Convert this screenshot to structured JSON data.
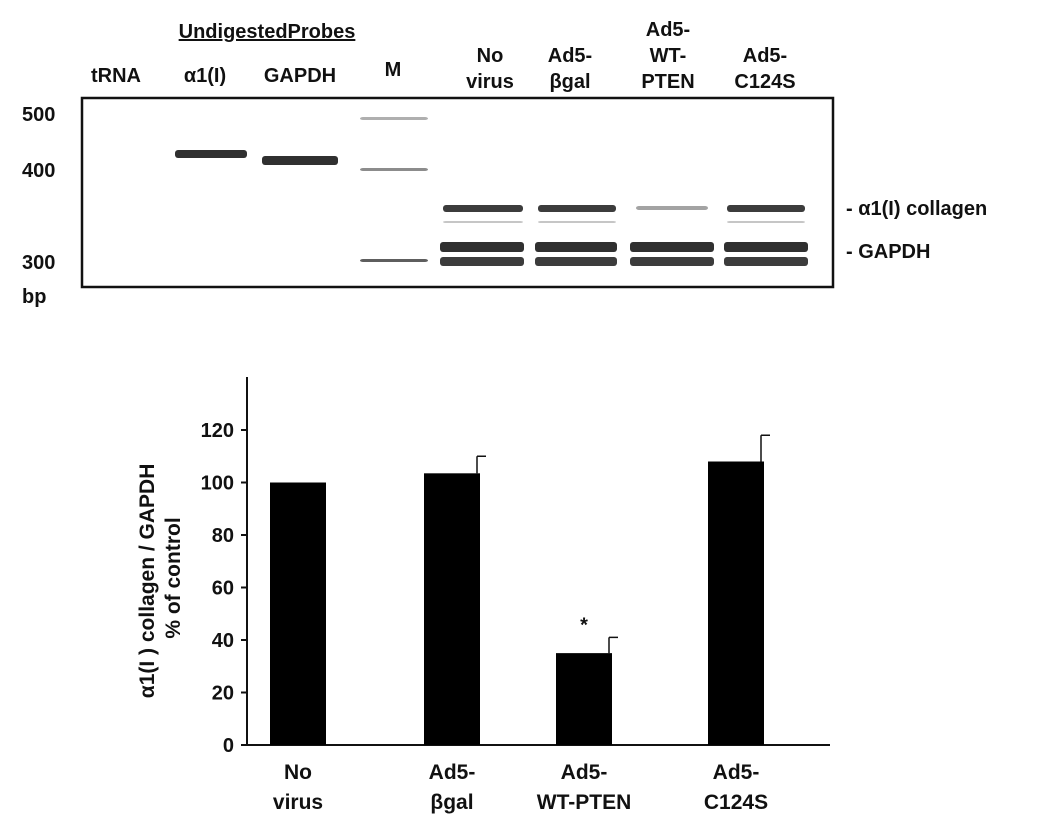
{
  "gel": {
    "header_group_label": "UndigestedProbes",
    "lanes": [
      {
        "lines": [
          "tRNA"
        ]
      },
      {
        "lines": [
          "α1(I)"
        ]
      },
      {
        "lines": [
          "GAPDH"
        ]
      },
      {
        "lines": [
          "M"
        ]
      },
      {
        "lines": [
          "No",
          "virus"
        ]
      },
      {
        "lines": [
          "Ad5-",
          "βgal"
        ]
      },
      {
        "lines": [
          "Ad5-",
          "WT-",
          "PTEN"
        ]
      },
      {
        "lines": [
          "Ad5-",
          "C124S"
        ]
      }
    ],
    "size_markers": [
      "500",
      "400",
      "300"
    ],
    "size_unit": "bp",
    "band_labels": [
      "- α1(I) collagen",
      "- GAPDH"
    ]
  },
  "chart_data": {
    "type": "bar",
    "categories": [
      [
        "No",
        "virus"
      ],
      [
        "Ad5-",
        "βgal"
      ],
      [
        "Ad5-",
        "WT-PTEN"
      ],
      [
        "Ad5-",
        "C124S"
      ]
    ],
    "values": [
      100,
      103.5,
      35,
      108
    ],
    "errors": [
      0,
      6.5,
      6,
      10
    ],
    "significance": [
      "",
      "",
      "*",
      ""
    ],
    "ylabel": [
      "α1(I ) collagen / GAPDH",
      "% of control"
    ],
    "ylim": [
      0,
      140
    ],
    "yticks": [
      0,
      20,
      40,
      60,
      80,
      100,
      120
    ],
    "bar_color": "#000000",
    "grid": false
  }
}
